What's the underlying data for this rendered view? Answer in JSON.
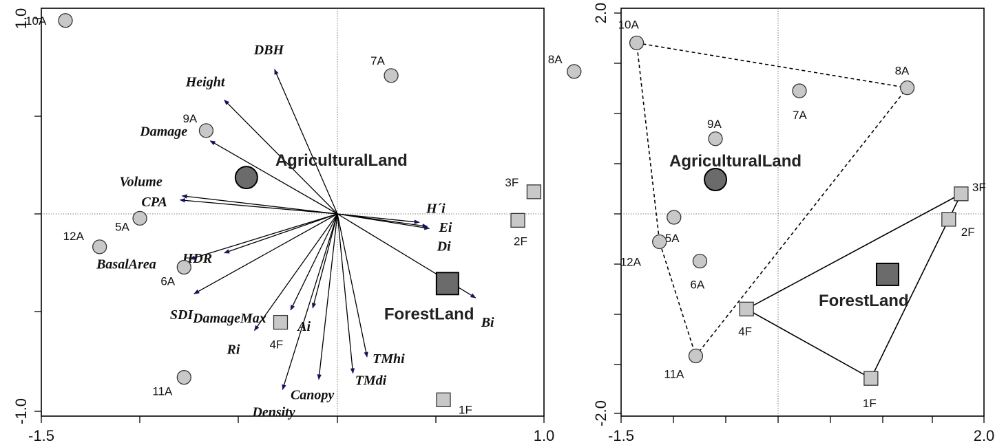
{
  "chart_data": [
    {
      "type": "scatter",
      "subtype": "ordination biplot",
      "xlim": [
        -1.5,
        1.0
      ],
      "ylim": [
        -1.0,
        1.0
      ],
      "x_ticks": [
        "-1.5",
        "1.0"
      ],
      "y_ticks": [
        "1.0",
        "-1.0"
      ],
      "reference_lines": "dotted at x=0, y=0",
      "colors": {
        "agri_point": "#c8c8c8",
        "forest_point": "#c8c8c8",
        "centroid": "#6b6b6b",
        "arrow": "#000000",
        "arrowhead": "#14145a"
      },
      "sites": [
        {
          "label": "10A",
          "group": "A",
          "x": -1.38,
          "y": 0.94
        },
        {
          "label": "7A",
          "group": "A",
          "x": 0.24,
          "y": 0.67
        },
        {
          "label": "8A",
          "group": "A",
          "x": 1.15,
          "y": 0.69
        },
        {
          "label": "9A",
          "group": "A",
          "x": -0.68,
          "y": 0.4
        },
        {
          "label": "5A",
          "group": "A",
          "x": -1.01,
          "y": -0.03
        },
        {
          "label": "12A",
          "group": "A",
          "x": -1.21,
          "y": -0.17
        },
        {
          "label": "6A",
          "group": "A",
          "x": -0.79,
          "y": -0.27
        },
        {
          "label": "11A",
          "group": "A",
          "x": -0.79,
          "y": -0.81
        },
        {
          "label": "3F",
          "group": "F",
          "x": 0.95,
          "y": 0.1
        },
        {
          "label": "2F",
          "group": "F",
          "x": 0.87,
          "y": -0.04
        },
        {
          "label": "4F",
          "group": "F",
          "x": -0.31,
          "y": -0.54
        },
        {
          "label": "1F",
          "group": "F",
          "x": 0.5,
          "y": -0.92
        }
      ],
      "centroids": [
        {
          "label": "AgriculturalLand",
          "x": -0.48,
          "y": 0.17
        },
        {
          "label": "ForestLand",
          "x": 0.52,
          "y": -0.35
        }
      ],
      "vectors": [
        {
          "label": "DBH",
          "x": -0.34,
          "y": 0.7
        },
        {
          "label": "Height",
          "x": -0.59,
          "y": 0.55
        },
        {
          "label": "Damage",
          "x": -0.66,
          "y": 0.35
        },
        {
          "label": "Volume",
          "x": -0.81,
          "y": 0.06
        },
        {
          "label": "CPA",
          "x": -0.8,
          "y": 0.08
        },
        {
          "label": "H´i",
          "x": 0.38,
          "y": -0.05
        },
        {
          "label": "Ei",
          "x": 0.43,
          "y": -0.08
        },
        {
          "label": "Di",
          "x": 0.42,
          "y": -0.07
        },
        {
          "label": "Bi",
          "x": 0.66,
          "y": -0.42
        },
        {
          "label": "BasalArea",
          "x": -0.76,
          "y": -0.23
        },
        {
          "label": "HDR",
          "x": -0.59,
          "y": -0.2
        },
        {
          "label": "SDI",
          "x": -0.74,
          "y": -0.4
        },
        {
          "label": "DamageMax",
          "x": -0.26,
          "y": -0.48
        },
        {
          "label": "Ai",
          "x": -0.15,
          "y": -0.47
        },
        {
          "label": "Ri",
          "x": -0.44,
          "y": -0.58
        },
        {
          "label": "Canopy",
          "x": -0.12,
          "y": -0.82
        },
        {
          "label": "Density",
          "x": -0.3,
          "y": -0.87
        },
        {
          "label": "TMhi",
          "x": 0.12,
          "y": -0.71
        },
        {
          "label": "TMdi",
          "x": 0.05,
          "y": -0.79
        }
      ]
    },
    {
      "type": "scatter",
      "subtype": "ordination with group hulls",
      "xlim": [
        -1.5,
        2.0
      ],
      "ylim": [
        -2.0,
        2.0
      ],
      "x_ticks": [
        "-1.5",
        "2.0"
      ],
      "y_ticks": [
        "2.0",
        "-2.0"
      ],
      "reference_lines": "dotted at x=0, y=0",
      "colors": {
        "point": "#c8c8c8",
        "centroid": "#6b6b6b"
      },
      "sites": [
        {
          "label": "10A",
          "group": "A",
          "x": -1.35,
          "y": 1.66
        },
        {
          "label": "8A",
          "group": "A",
          "x": 1.26,
          "y": 1.22
        },
        {
          "label": "7A",
          "group": "A",
          "x": 0.22,
          "y": 1.19
        },
        {
          "label": "9A",
          "group": "A",
          "x": -0.59,
          "y": 0.72
        },
        {
          "label": "5A",
          "group": "A",
          "x": -0.99,
          "y": -0.05
        },
        {
          "label": "12A",
          "group": "A",
          "x": -1.13,
          "y": -0.29
        },
        {
          "label": "6A",
          "group": "A",
          "x": -0.74,
          "y": -0.48
        },
        {
          "label": "11A",
          "group": "A",
          "x": -0.78,
          "y": -1.41
        },
        {
          "label": "3F",
          "group": "F",
          "x": 1.78,
          "y": 0.18
        },
        {
          "label": "2F",
          "group": "F",
          "x": 1.66,
          "y": -0.07
        },
        {
          "label": "4F",
          "group": "F",
          "x": -0.29,
          "y": -0.95
        },
        {
          "label": "1F",
          "group": "F",
          "x": 0.91,
          "y": -1.63
        }
      ],
      "centroids": [
        {
          "label": "AgriculturalLand",
          "x": -0.59,
          "y": 0.32
        },
        {
          "label": "ForestLand",
          "x": 1.07,
          "y": -0.61
        }
      ],
      "hulls": [
        {
          "group": "A",
          "style": "dashed",
          "vertices": [
            "10A",
            "8A",
            "11A",
            "12A"
          ]
        },
        {
          "group": "F",
          "style": "solid",
          "vertices": [
            "3F",
            "2F",
            "1F",
            "4F"
          ]
        }
      ]
    }
  ]
}
